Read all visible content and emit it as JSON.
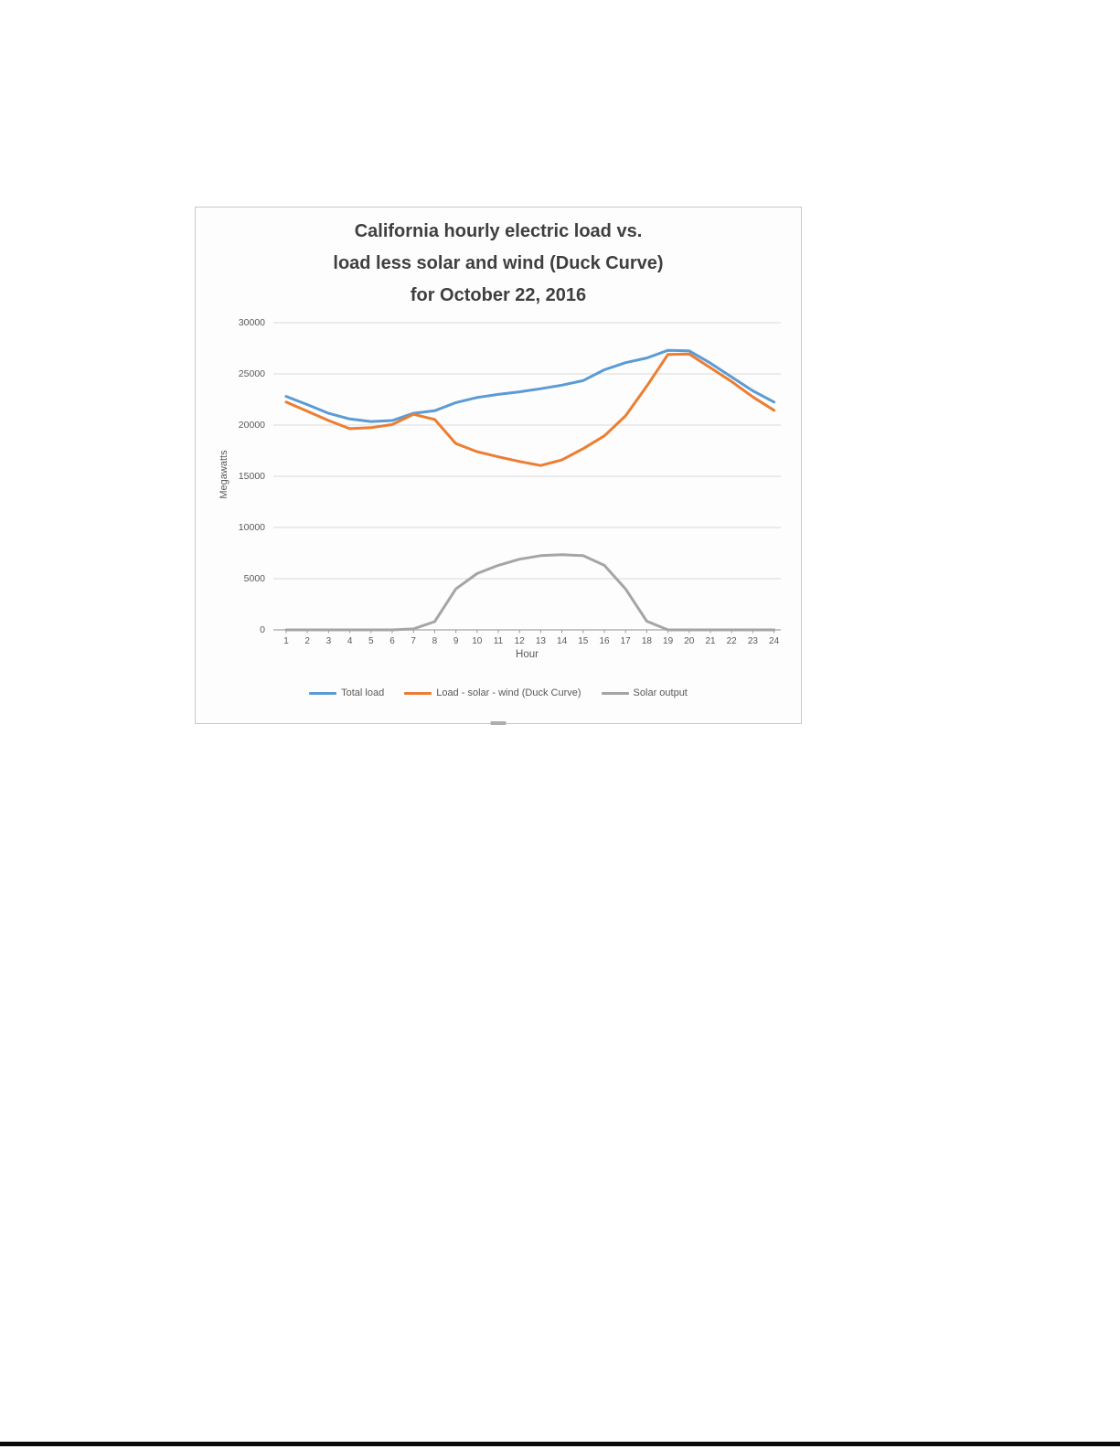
{
  "chart": {
    "title_lines": [
      "California hourly electric load vs.",
      "load less solar and wind (Duck Curve)",
      "for October 22, 2016"
    ],
    "xlabel": "Hour",
    "ylabel": "Megawatts"
  },
  "chart_data": {
    "type": "line",
    "title": "California hourly electric load vs. load less solar and wind (Duck Curve) for October 22, 2016",
    "xlabel": "Hour",
    "ylabel": "Megawatts",
    "x": [
      1,
      2,
      3,
      4,
      5,
      6,
      7,
      8,
      9,
      10,
      11,
      12,
      13,
      14,
      15,
      16,
      17,
      18,
      19,
      20,
      21,
      22,
      23,
      24
    ],
    "ylim": [
      0,
      30000
    ],
    "yticks": [
      0,
      5000,
      10000,
      15000,
      20000,
      25000,
      30000
    ],
    "grid": true,
    "legend_position": "bottom",
    "colors": {
      "gridline": "#d9d9d9",
      "axis_line": "#b3b3b3",
      "tick_text": "#595959",
      "title_text": "#3f3f3f"
    },
    "series": [
      {
        "name": "Total load",
        "color": "#5B9BD5",
        "values": [
          22800,
          22000,
          21150,
          20600,
          20350,
          20450,
          21150,
          21400,
          22200,
          22700,
          23000,
          23250,
          23550,
          23900,
          24350,
          25400,
          26100,
          26550,
          27300,
          27250,
          26050,
          24700,
          23350,
          22250
        ]
      },
      {
        "name": "Load - solar - wind (Duck Curve)",
        "color": "#ED7D31",
        "values": [
          22250,
          21350,
          20450,
          19650,
          19750,
          20050,
          21050,
          20550,
          18200,
          17400,
          16900,
          16450,
          16050,
          16600,
          17700,
          18950,
          20900,
          23800,
          26900,
          26950,
          25600,
          24250,
          22750,
          21450
        ]
      },
      {
        "name": "Solar output",
        "color": "#A5A5A5",
        "values": [
          0,
          0,
          0,
          0,
          0,
          0,
          100,
          800,
          4000,
          5500,
          6300,
          6900,
          7250,
          7350,
          7250,
          6300,
          4000,
          850,
          0,
          0,
          0,
          0,
          0,
          0
        ]
      }
    ]
  }
}
